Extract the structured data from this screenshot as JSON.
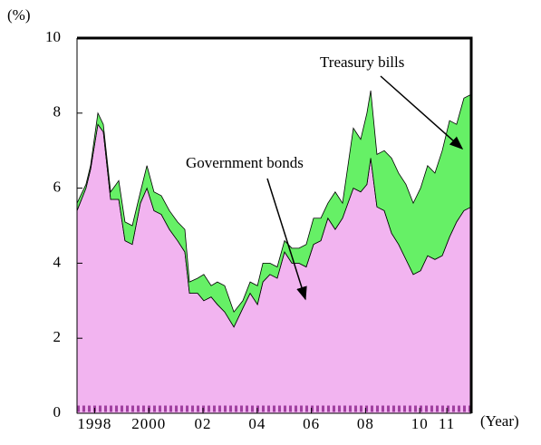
{
  "chart_data": {
    "type": "stacked_area",
    "y_label": "(%)",
    "x_label": "(Year)",
    "x": [
      1997.35,
      1997.68,
      1997.85,
      1998.12,
      1998.32,
      1998.59,
      1998.89,
      1999.12,
      1999.39,
      1999.69,
      1999.93,
      2000.19,
      2000.46,
      2000.76,
      2001.06,
      2001.33,
      2001.5,
      2001.8,
      2002.03,
      2002.3,
      2002.53,
      2002.8,
      2003.14,
      2003.47,
      2003.74,
      2004.01,
      2004.21,
      2004.47,
      2004.74,
      2005.01,
      2005.28,
      2005.54,
      2005.81,
      2006.08,
      2006.35,
      2006.61,
      2006.88,
      2007.15,
      2007.55,
      2007.82,
      2008.05,
      2008.19,
      2008.42,
      2008.69,
      2008.96,
      2009.22,
      2009.49,
      2009.76,
      2010.03,
      2010.29,
      2010.56,
      2010.83,
      2011.1,
      2011.36,
      2011.63,
      2011.9
    ],
    "series": [
      {
        "name": "Government bonds",
        "color": "#f2b4f0",
        "values": [
          5.4,
          6.0,
          6.5,
          7.7,
          7.5,
          5.7,
          5.7,
          4.6,
          4.5,
          5.6,
          6.0,
          5.4,
          5.3,
          4.9,
          4.6,
          4.3,
          3.2,
          3.2,
          3.0,
          3.1,
          2.9,
          2.7,
          2.3,
          2.8,
          3.2,
          2.9,
          3.5,
          3.7,
          3.6,
          4.3,
          4.0,
          4.0,
          3.9,
          4.5,
          4.6,
          5.2,
          4.9,
          5.2,
          6.0,
          5.9,
          6.1,
          6.8,
          5.5,
          5.4,
          4.8,
          4.5,
          4.1,
          3.7,
          3.8,
          4.2,
          4.1,
          4.2,
          4.7,
          5.1,
          5.4,
          5.5
        ]
      },
      {
        "name": "Treasury bills",
        "color": "#66f066",
        "values": [
          0.2,
          0.1,
          0.1,
          0.3,
          0.2,
          0.2,
          0.5,
          0.5,
          0.5,
          0.3,
          0.6,
          0.5,
          0.5,
          0.5,
          0.5,
          0.6,
          0.3,
          0.4,
          0.7,
          0.3,
          0.6,
          0.7,
          0.4,
          0.2,
          0.3,
          0.5,
          0.5,
          0.3,
          0.3,
          0.3,
          0.4,
          0.4,
          0.6,
          0.7,
          0.6,
          0.4,
          1.0,
          0.4,
          1.6,
          1.4,
          1.9,
          1.8,
          1.4,
          1.6,
          2.0,
          1.9,
          2.0,
          1.9,
          2.2,
          2.4,
          2.3,
          2.8,
          3.1,
          2.6,
          3.0,
          3.0
        ]
      }
    ],
    "xlim": [
      1997.35,
      2011.9
    ],
    "xticks": [
      1998,
      2000,
      {
        "value": 2002,
        "label": "02"
      },
      {
        "value": 2004,
        "label": "04"
      },
      {
        "value": 2006,
        "label": "06"
      },
      {
        "value": 2008,
        "label": "08"
      },
      {
        "value": 2010,
        "label": "10"
      },
      {
        "value": 2011,
        "label": "11"
      }
    ],
    "ylim": [
      0,
      10
    ],
    "yticks": [
      0,
      2,
      4,
      6,
      8,
      10
    ]
  }
}
